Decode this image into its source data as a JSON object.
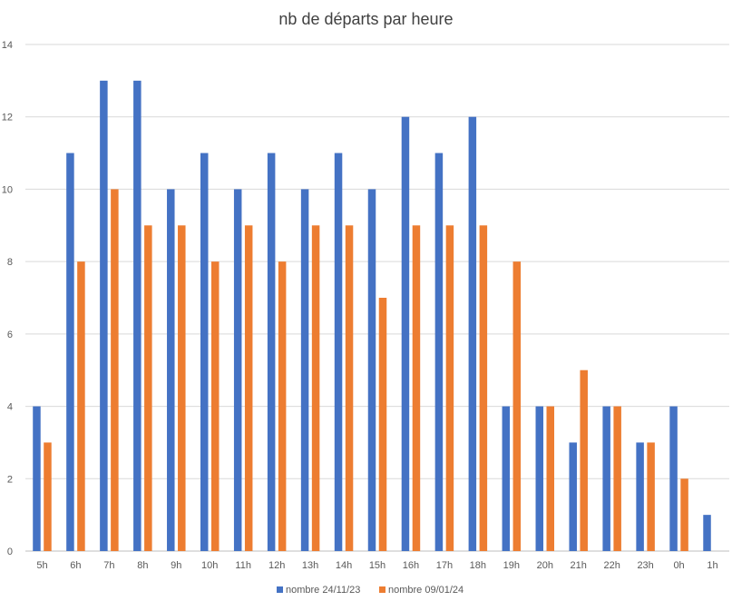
{
  "chart_data": {
    "type": "bar",
    "title": "nb de départs par heure",
    "xlabel": "",
    "ylabel": "",
    "ylim": [
      0,
      14
    ],
    "yticks": [
      0,
      2,
      4,
      6,
      8,
      10,
      12,
      14
    ],
    "grid": true,
    "legend_position": "bottom",
    "categories": [
      "5h",
      "6h",
      "7h",
      "8h",
      "9h",
      "10h",
      "11h",
      "12h",
      "13h",
      "14h",
      "15h",
      "16h",
      "17h",
      "18h",
      "19h",
      "20h",
      "21h",
      "22h",
      "23h",
      "0h",
      "1h"
    ],
    "series": [
      {
        "name": "nombre 24/11/23",
        "color": "#4472C4",
        "values": [
          4,
          11,
          13,
          13,
          10,
          11,
          10,
          11,
          10,
          11,
          10,
          12,
          11,
          12,
          4,
          4,
          3,
          4,
          3,
          4,
          1
        ]
      },
      {
        "name": "nombre 09/01/24",
        "color": "#ED7D31",
        "values": [
          3,
          8,
          10,
          9,
          9,
          8,
          9,
          8,
          9,
          9,
          7,
          9,
          9,
          9,
          8,
          4,
          5,
          4,
          3,
          2,
          0
        ]
      }
    ]
  }
}
